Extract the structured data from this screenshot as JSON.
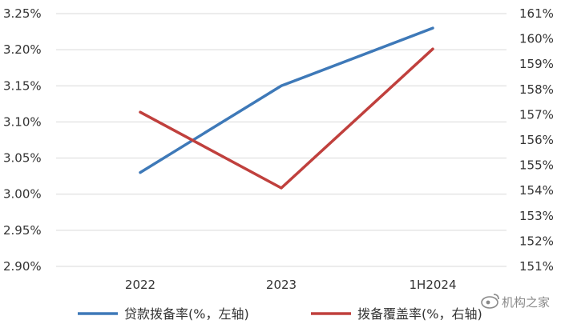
{
  "chart_data": {
    "type": "line",
    "categories": [
      "2022",
      "2023",
      "1H2024"
    ],
    "y_left": {
      "ticks": [
        "2.90%",
        "2.95%",
        "3.00%",
        "3.05%",
        "3.10%",
        "3.15%",
        "3.20%",
        "3.25%"
      ],
      "ylim": [
        2.9,
        3.25
      ]
    },
    "y_right": {
      "ticks": [
        "151%",
        "152%",
        "153%",
        "154%",
        "155%",
        "156%",
        "157%",
        "158%",
        "159%",
        "160%",
        "161%"
      ],
      "ylim": [
        151,
        161
      ]
    },
    "series": [
      {
        "name": "贷款拨备率(%，左轴)",
        "axis": "left",
        "color": "#3e79b8",
        "values": [
          3.03,
          3.15,
          3.23
        ]
      },
      {
        "name": "拨备覆盖率(%，右轴)",
        "axis": "right",
        "color": "#c0403d",
        "values": [
          157.1,
          154.1,
          159.6
        ]
      }
    ],
    "grid": true,
    "legend_position": "bottom"
  },
  "watermark": "机构之家"
}
